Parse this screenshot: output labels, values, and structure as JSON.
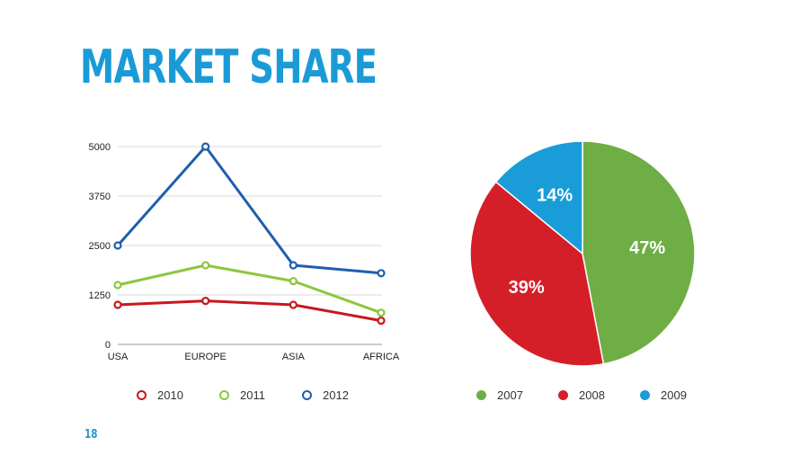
{
  "slide": {
    "title": "Market Share",
    "page_number": "18"
  },
  "chart_data": [
    {
      "type": "line",
      "categories": [
        "USA",
        "EUROPE",
        "ASIA",
        "AFRICA"
      ],
      "ylim": [
        0,
        5000
      ],
      "yticks": [
        0,
        1250,
        2500,
        3750,
        5000
      ],
      "grid": true,
      "legend_position": "bottom",
      "series": [
        {
          "name": "2010",
          "color": "#c8171e",
          "values": [
            1000,
            1100,
            1000,
            600
          ]
        },
        {
          "name": "2011",
          "color": "#8dc63f",
          "values": [
            1500,
            2000,
            1600,
            800
          ]
        },
        {
          "name": "2012",
          "color": "#1f5eae",
          "values": [
            2500,
            5000,
            2000,
            1800
          ]
        }
      ]
    },
    {
      "type": "pie",
      "legend_position": "bottom",
      "slices": [
        {
          "name": "2007",
          "value": 47,
          "label": "47%",
          "color": "#6fad45"
        },
        {
          "name": "2008",
          "value": 39,
          "label": "39%",
          "color": "#d51f28"
        },
        {
          "name": "2009",
          "value": 14,
          "label": "14%",
          "color": "#1a9cd8"
        }
      ]
    }
  ]
}
